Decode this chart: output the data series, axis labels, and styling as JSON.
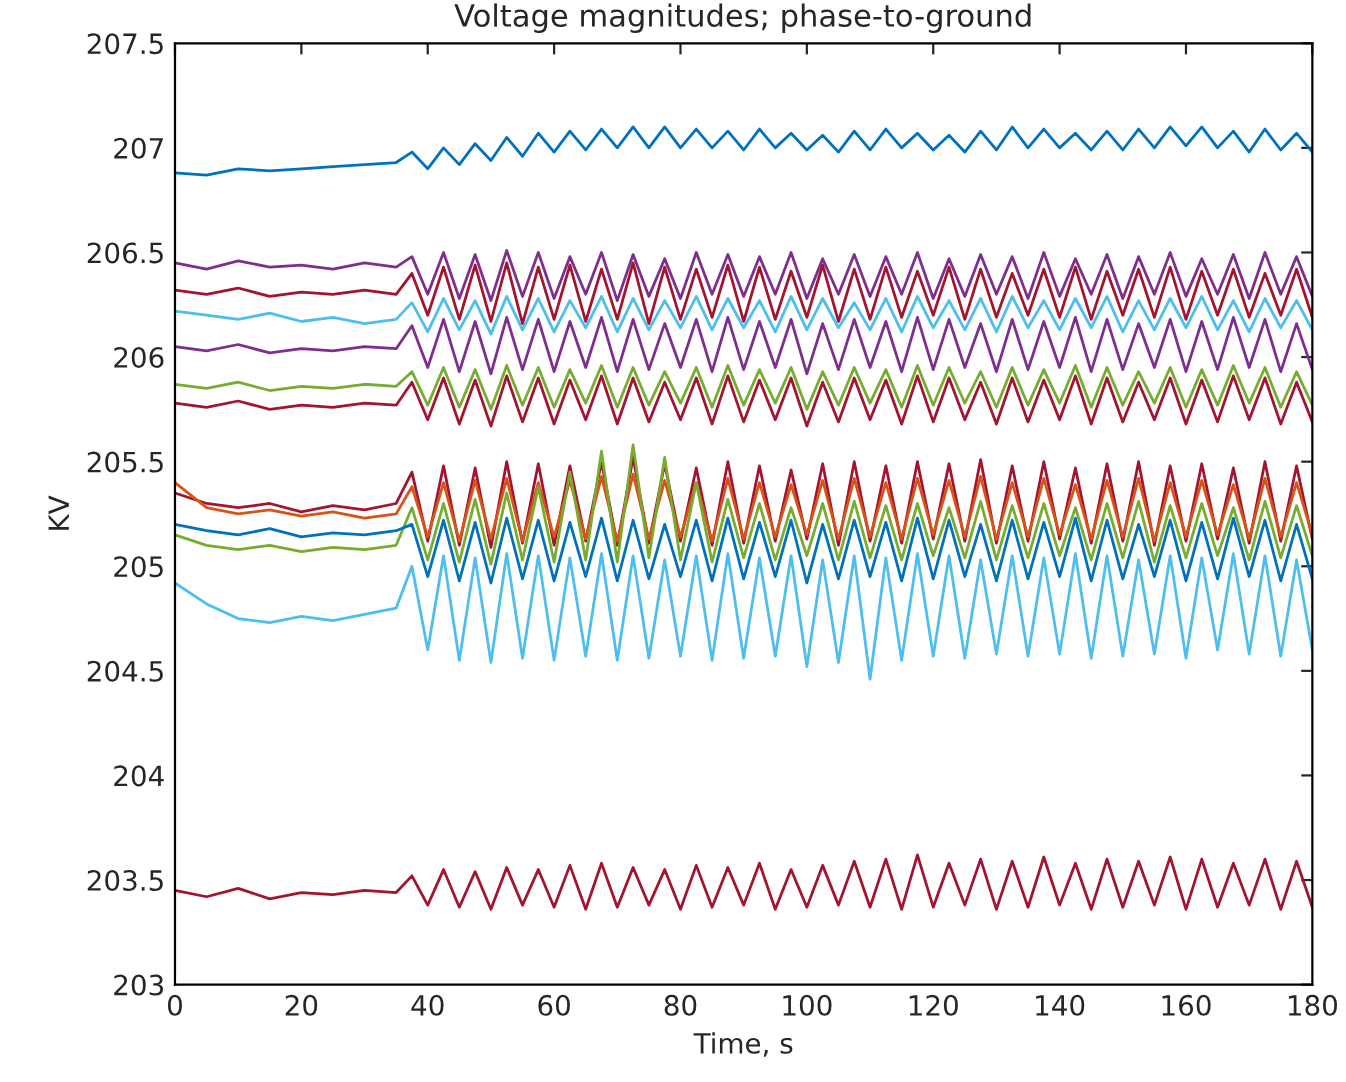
{
  "chart_data": {
    "type": "line",
    "title": "Voltage magnitudes; phase-to-ground",
    "xlabel": "Time, s",
    "ylabel": "KV",
    "x": [
      0,
      5,
      10,
      15,
      20,
      25,
      30,
      35,
      37.5,
      40,
      42.5,
      45,
      47.5,
      50,
      52.5,
      55,
      57.5,
      60,
      62.5,
      65,
      67.5,
      70,
      72.5,
      75,
      77.5,
      80,
      82.5,
      85,
      87.5,
      90,
      92.5,
      95,
      97.5,
      100,
      102.5,
      105,
      107.5,
      110,
      112.5,
      115,
      117.5,
      120,
      122.5,
      125,
      127.5,
      130,
      132.5,
      135,
      137.5,
      140,
      142.5,
      145,
      147.5,
      150,
      152.5,
      155,
      157.5,
      160,
      162.5,
      165,
      167.5,
      170,
      172.5,
      175,
      177.5,
      180
    ],
    "xlim": [
      0,
      180
    ],
    "xticks": [
      0,
      20,
      40,
      60,
      80,
      100,
      120,
      140,
      160,
      180
    ],
    "ylim": [
      203,
      207.5
    ],
    "yticks": [
      203,
      203.5,
      204,
      204.5,
      205,
      205.5,
      206,
      206.5,
      207,
      207.5
    ],
    "grid": false,
    "marker": "none",
    "line_style": "solid",
    "series": [
      {
        "color": "#0072bd",
        "values": [
          206.88,
          206.87,
          206.9,
          206.89,
          206.9,
          206.91,
          206.92,
          206.93,
          206.98,
          206.9,
          207.0,
          206.92,
          207.02,
          206.94,
          207.05,
          206.96,
          207.07,
          206.98,
          207.08,
          206.99,
          207.09,
          207.0,
          207.1,
          207.0,
          207.1,
          207.0,
          207.09,
          207.0,
          207.08,
          206.99,
          207.09,
          207.0,
          207.07,
          206.99,
          207.06,
          206.98,
          207.08,
          206.99,
          207.09,
          207.0,
          207.07,
          206.99,
          207.06,
          206.98,
          207.08,
          206.99,
          207.1,
          207.0,
          207.09,
          207.0,
          207.07,
          206.99,
          207.08,
          206.99,
          207.09,
          207.0,
          207.1,
          207.01,
          207.1,
          207.0,
          207.08,
          206.98,
          207.09,
          206.99,
          207.07,
          206.98
        ]
      },
      {
        "color": "#7e2f8e",
        "values": [
          206.45,
          206.42,
          206.46,
          206.43,
          206.44,
          206.42,
          206.45,
          206.43,
          206.48,
          206.3,
          206.5,
          206.28,
          206.49,
          206.27,
          206.51,
          206.29,
          206.5,
          206.28,
          206.48,
          206.3,
          206.5,
          206.27,
          206.49,
          206.29,
          206.47,
          206.28,
          206.5,
          206.3,
          206.49,
          206.29,
          206.48,
          206.3,
          206.5,
          206.28,
          206.47,
          206.3,
          206.49,
          206.29,
          206.48,
          206.3,
          206.5,
          206.28,
          206.47,
          206.29,
          206.49,
          206.3,
          206.48,
          206.28,
          206.5,
          206.29,
          206.47,
          206.3,
          206.49,
          206.28,
          206.48,
          206.3,
          206.5,
          206.29,
          206.47,
          206.3,
          206.49,
          206.28,
          206.5,
          206.3,
          206.48,
          206.29
        ]
      },
      {
        "color": "#a2142f",
        "values": [
          206.32,
          206.3,
          206.33,
          206.29,
          206.31,
          206.3,
          206.32,
          206.3,
          206.4,
          206.2,
          206.43,
          206.18,
          206.44,
          206.17,
          206.45,
          206.16,
          206.43,
          206.18,
          206.44,
          206.17,
          206.42,
          206.18,
          206.45,
          206.16,
          206.43,
          206.18,
          206.42,
          206.19,
          206.44,
          206.17,
          206.43,
          206.18,
          206.41,
          206.19,
          206.44,
          206.17,
          206.42,
          206.18,
          206.43,
          206.19,
          206.41,
          206.2,
          206.43,
          206.18,
          206.42,
          206.19,
          206.4,
          206.2,
          206.42,
          206.19,
          206.43,
          206.18,
          206.41,
          206.2,
          206.42,
          206.19,
          206.43,
          206.18,
          206.41,
          206.2,
          206.42,
          206.19,
          206.4,
          206.2,
          206.42,
          206.19
        ]
      },
      {
        "color": "#4dbeee",
        "values": [
          206.22,
          206.2,
          206.18,
          206.21,
          206.17,
          206.19,
          206.16,
          206.18,
          206.26,
          206.12,
          206.28,
          206.13,
          206.27,
          206.11,
          206.29,
          206.13,
          206.28,
          206.12,
          206.27,
          206.14,
          206.29,
          206.12,
          206.28,
          206.13,
          206.27,
          206.14,
          206.29,
          206.13,
          206.28,
          206.14,
          206.27,
          206.12,
          206.29,
          206.13,
          206.28,
          206.14,
          206.26,
          206.13,
          206.28,
          206.12,
          206.29,
          206.14,
          206.27,
          206.13,
          206.28,
          206.12,
          206.29,
          206.14,
          206.27,
          206.13,
          206.28,
          206.14,
          206.29,
          206.12,
          206.27,
          206.13,
          206.28,
          206.14,
          206.29,
          206.13,
          206.27,
          206.12,
          206.28,
          206.14,
          206.27,
          206.13
        ]
      },
      {
        "color": "#7e2f8e",
        "values": [
          206.05,
          206.03,
          206.06,
          206.02,
          206.04,
          206.03,
          206.05,
          206.04,
          206.15,
          205.95,
          206.18,
          205.93,
          206.17,
          205.92,
          206.19,
          205.94,
          206.18,
          205.93,
          206.17,
          205.95,
          206.19,
          205.93,
          206.18,
          205.94,
          206.16,
          205.95,
          206.18,
          205.93,
          206.19,
          205.94,
          206.17,
          205.95,
          206.18,
          205.92,
          206.16,
          205.94,
          206.18,
          205.95,
          206.17,
          205.93,
          206.19,
          205.94,
          206.18,
          205.95,
          206.16,
          205.93,
          206.18,
          205.94,
          206.17,
          205.95,
          206.19,
          205.93,
          206.18,
          205.94,
          206.16,
          205.95,
          206.18,
          205.93,
          206.17,
          205.94,
          206.19,
          205.95,
          206.18,
          205.93,
          206.16,
          205.94
        ]
      },
      {
        "color": "#77ac30",
        "values": [
          205.87,
          205.85,
          205.88,
          205.84,
          205.86,
          205.85,
          205.87,
          205.86,
          205.93,
          205.77,
          205.95,
          205.76,
          205.94,
          205.75,
          205.96,
          205.77,
          205.95,
          205.76,
          205.94,
          205.78,
          205.96,
          205.76,
          205.95,
          205.77,
          205.93,
          205.78,
          205.95,
          205.76,
          205.96,
          205.77,
          205.94,
          205.78,
          205.95,
          205.75,
          205.93,
          205.77,
          205.95,
          205.78,
          205.94,
          205.76,
          205.96,
          205.77,
          205.95,
          205.78,
          205.93,
          205.76,
          205.95,
          205.77,
          205.94,
          205.78,
          205.96,
          205.76,
          205.95,
          205.77,
          205.93,
          205.78,
          205.95,
          205.76,
          205.94,
          205.77,
          205.96,
          205.78,
          205.95,
          205.76,
          205.93,
          205.77
        ]
      },
      {
        "color": "#a2142f",
        "values": [
          205.78,
          205.76,
          205.79,
          205.75,
          205.77,
          205.76,
          205.78,
          205.77,
          205.88,
          205.7,
          205.9,
          205.68,
          205.89,
          205.67,
          205.91,
          205.69,
          205.9,
          205.68,
          205.89,
          205.7,
          205.91,
          205.68,
          205.9,
          205.69,
          205.88,
          205.7,
          205.9,
          205.68,
          205.91,
          205.69,
          205.89,
          205.7,
          205.9,
          205.67,
          205.88,
          205.69,
          205.9,
          205.7,
          205.89,
          205.68,
          205.91,
          205.69,
          205.9,
          205.7,
          205.88,
          205.68,
          205.9,
          205.69,
          205.89,
          205.7,
          205.91,
          205.68,
          205.9,
          205.69,
          205.88,
          205.7,
          205.9,
          205.68,
          205.89,
          205.69,
          205.91,
          205.7,
          205.9,
          205.68,
          205.88,
          205.69
        ]
      },
      {
        "color": "#a2142f",
        "values": [
          205.35,
          205.3,
          205.28,
          205.3,
          205.26,
          205.29,
          205.27,
          205.3,
          205.45,
          205.12,
          205.48,
          205.1,
          205.47,
          205.09,
          205.5,
          205.11,
          205.49,
          205.1,
          205.48,
          205.12,
          205.5,
          205.1,
          205.52,
          205.11,
          205.49,
          205.12,
          205.47,
          205.1,
          205.5,
          205.11,
          205.48,
          205.12,
          205.46,
          205.13,
          205.49,
          205.1,
          205.5,
          205.12,
          205.48,
          205.11,
          205.5,
          205.13,
          205.49,
          205.12,
          205.51,
          205.11,
          205.48,
          205.12,
          205.5,
          205.13,
          205.47,
          205.11,
          205.49,
          205.12,
          205.5,
          205.1,
          205.48,
          205.12,
          205.49,
          205.13,
          205.47,
          205.11,
          205.5,
          205.12,
          205.48,
          205.13
        ]
      },
      {
        "color": "#d95319",
        "values": [
          205.4,
          205.28,
          205.25,
          205.27,
          205.24,
          205.26,
          205.23,
          205.25,
          205.38,
          205.14,
          205.4,
          205.12,
          205.41,
          205.13,
          205.42,
          205.12,
          205.4,
          205.14,
          205.41,
          205.13,
          205.43,
          205.12,
          205.44,
          205.13,
          205.41,
          205.14,
          205.4,
          205.12,
          205.42,
          205.13,
          205.4,
          205.14,
          205.39,
          205.15,
          205.41,
          205.13,
          205.42,
          205.14,
          205.4,
          205.13,
          205.42,
          205.15,
          205.41,
          205.14,
          205.43,
          205.13,
          205.4,
          205.14,
          205.42,
          205.15,
          205.39,
          205.13,
          205.41,
          205.14,
          205.42,
          205.12,
          205.4,
          205.14,
          205.41,
          205.15,
          205.39,
          205.13,
          205.42,
          205.14,
          205.4,
          205.15
        ]
      },
      {
        "color": "#77ac30",
        "values": [
          205.15,
          205.1,
          205.08,
          205.1,
          205.07,
          205.09,
          205.08,
          205.1,
          205.28,
          205.03,
          205.3,
          205.02,
          205.32,
          205.01,
          205.35,
          205.03,
          205.38,
          205.02,
          205.45,
          205.03,
          205.55,
          205.02,
          205.58,
          205.04,
          205.52,
          205.03,
          205.4,
          205.02,
          205.32,
          205.04,
          205.3,
          205.03,
          205.28,
          205.05,
          205.3,
          205.03,
          205.31,
          205.04,
          205.29,
          205.03,
          205.3,
          205.05,
          205.28,
          205.04,
          205.31,
          205.03,
          205.29,
          205.04,
          205.3,
          205.05,
          205.28,
          205.03,
          205.3,
          205.04,
          205.31,
          205.02,
          205.29,
          205.04,
          205.3,
          205.05,
          205.28,
          205.03,
          205.31,
          205.04,
          205.29,
          205.05
        ]
      },
      {
        "color": "#0072bd",
        "values": [
          205.2,
          205.17,
          205.15,
          205.18,
          205.14,
          205.16,
          205.15,
          205.17,
          205.2,
          204.95,
          205.22,
          204.93,
          205.21,
          204.92,
          205.23,
          204.94,
          205.22,
          204.93,
          205.21,
          204.95,
          205.23,
          204.93,
          205.22,
          204.94,
          205.2,
          204.95,
          205.22,
          204.93,
          205.23,
          204.94,
          205.21,
          204.95,
          205.22,
          204.92,
          205.2,
          204.94,
          205.22,
          204.95,
          205.21,
          204.93,
          205.23,
          204.94,
          205.22,
          204.95,
          205.2,
          204.93,
          205.22,
          204.94,
          205.21,
          204.95,
          205.23,
          204.93,
          205.22,
          204.94,
          205.2,
          204.95,
          205.22,
          204.93,
          205.21,
          204.94,
          205.23,
          204.95,
          205.22,
          204.93,
          205.2,
          204.94
        ]
      },
      {
        "color": "#4dbeee",
        "values": [
          204.92,
          204.82,
          204.75,
          204.73,
          204.76,
          204.74,
          204.77,
          204.8,
          205.0,
          204.6,
          205.05,
          204.55,
          205.04,
          204.54,
          205.06,
          204.56,
          205.05,
          204.55,
          205.04,
          204.57,
          205.06,
          204.55,
          205.05,
          204.56,
          205.03,
          204.57,
          205.05,
          204.55,
          205.06,
          204.56,
          205.04,
          204.57,
          205.05,
          204.52,
          205.03,
          204.54,
          205.05,
          204.46,
          205.04,
          204.55,
          205.06,
          204.57,
          205.05,
          204.56,
          205.03,
          204.58,
          205.05,
          204.57,
          205.04,
          204.58,
          205.06,
          204.56,
          205.05,
          204.57,
          205.03,
          204.58,
          205.05,
          204.56,
          205.04,
          204.6,
          205.06,
          204.58,
          205.05,
          204.57,
          205.03,
          204.6
        ]
      },
      {
        "color": "#a2142f",
        "values": [
          203.45,
          203.42,
          203.46,
          203.41,
          203.44,
          203.43,
          203.45,
          203.44,
          203.52,
          203.38,
          203.55,
          203.37,
          203.54,
          203.36,
          203.56,
          203.38,
          203.55,
          203.37,
          203.57,
          203.36,
          203.58,
          203.37,
          203.56,
          203.38,
          203.55,
          203.36,
          203.57,
          203.37,
          203.56,
          203.38,
          203.58,
          203.36,
          203.55,
          203.37,
          203.57,
          203.38,
          203.59,
          203.37,
          203.6,
          203.36,
          203.62,
          203.37,
          203.58,
          203.38,
          203.6,
          203.36,
          203.59,
          203.37,
          203.61,
          203.38,
          203.58,
          203.36,
          203.6,
          203.37,
          203.59,
          203.38,
          203.61,
          203.36,
          203.6,
          203.37,
          203.58,
          203.38,
          203.6,
          203.36,
          203.59,
          203.37
        ]
      }
    ]
  }
}
